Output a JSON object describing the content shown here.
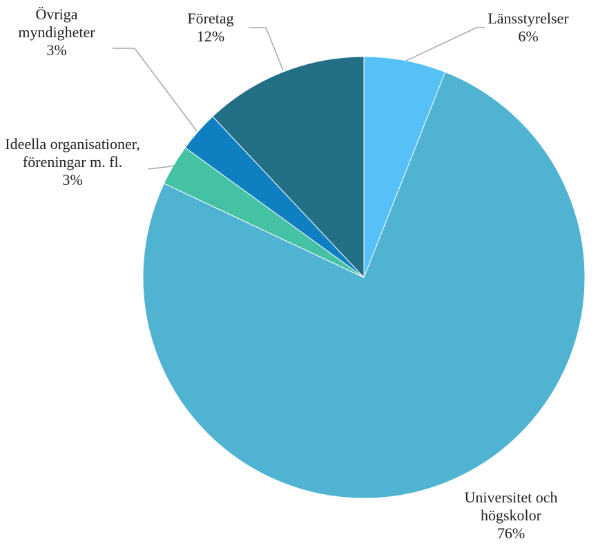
{
  "chart_data": {
    "type": "pie",
    "categories": [
      "Länsstyrelser",
      "Universitet och högskolor",
      "Ideella organisationer, föreningar m. fl.",
      "Övriga myndigheter",
      "Företag"
    ],
    "values": [
      6,
      76,
      3,
      3,
      12
    ],
    "value_labels": [
      "6%",
      "76%",
      "3%",
      "3%",
      "12%"
    ],
    "colors": [
      "#56c1f7",
      "#4fb3d1",
      "#45c1a3",
      "#0e7fc0",
      "#236f86"
    ]
  }
}
